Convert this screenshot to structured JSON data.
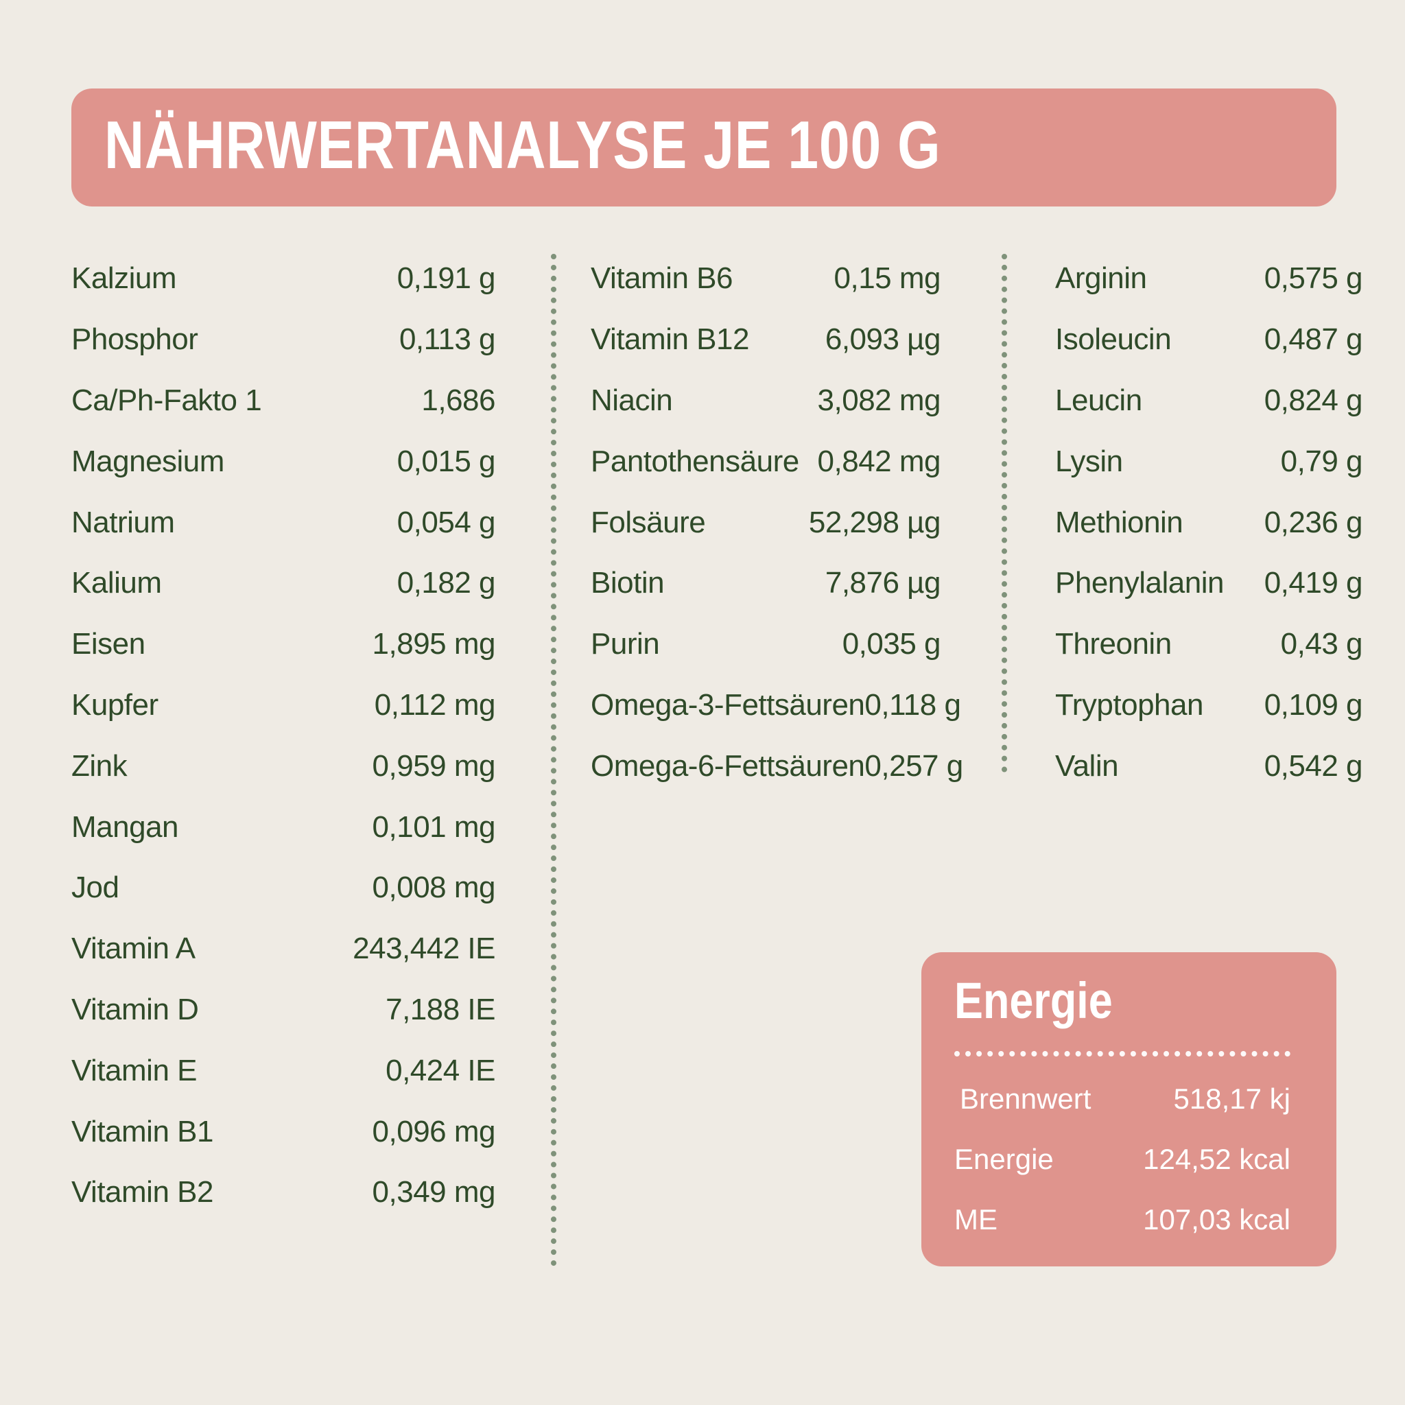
{
  "header": {
    "title": "NÄHRWERTANALYSE JE 100 G"
  },
  "columns": [
    [
      {
        "label": "Kalzium",
        "value": "0,191 g"
      },
      {
        "label": "Phosphor",
        "value": "0,113 g"
      },
      {
        "label": "Ca/Ph-Fakto 1",
        "value": "1,686"
      },
      {
        "label": "Magnesium",
        "value": "0,015 g"
      },
      {
        "label": "Natrium",
        "value": "0,054 g"
      },
      {
        "label": "Kalium",
        "value": "0,182 g"
      },
      {
        "label": "Eisen",
        "value": "1,895 mg"
      },
      {
        "label": "Kupfer",
        "value": "0,112 mg"
      },
      {
        "label": "Zink",
        "value": "0,959 mg"
      },
      {
        "label": "Mangan",
        "value": "0,101 mg"
      },
      {
        "label": "Jod",
        "value": "0,008 mg"
      },
      {
        "label": "Vitamin A",
        "value": "243,442 IE"
      },
      {
        "label": "Vitamin D",
        "value": "7,188 IE"
      },
      {
        "label": "Vitamin E",
        "value": "0,424 IE"
      },
      {
        "label": "Vitamin B1",
        "value": "0,096 mg"
      },
      {
        "label": "Vitamin B2",
        "value": "0,349 mg"
      }
    ],
    [
      {
        "label": "Vitamin B6",
        "value": "0,15 mg"
      },
      {
        "label": "Vitamin B12",
        "value": "6,093 µg"
      },
      {
        "label": "Niacin",
        "value": "3,082 mg"
      },
      {
        "label": "Pantothensäure",
        "value": "0,842 mg"
      },
      {
        "label": "Folsäure",
        "value": "52,298 µg"
      },
      {
        "label": "Biotin",
        "value": "7,876 µg"
      },
      {
        "label": "Purin",
        "value": "0,035 g"
      },
      {
        "label": "Omega-3-Fettsäuren",
        "value": "0,118 g"
      },
      {
        "label": "Omega-6-Fettsäuren",
        "value": "0,257 g"
      }
    ],
    [
      {
        "label": "Arginin",
        "value": "0,575 g"
      },
      {
        "label": "Isoleucin",
        "value": "0,487 g"
      },
      {
        "label": "Leucin",
        "value": "0,824 g"
      },
      {
        "label": "Lysin",
        "value": "0,79 g"
      },
      {
        "label": "Methionin",
        "value": "0,236 g"
      },
      {
        "label": "Phenylalanin",
        "value": "0,419 g"
      },
      {
        "label": "Threonin",
        "value": "0,43 g"
      },
      {
        "label": "Tryptophan",
        "value": "0,109 g"
      },
      {
        "label": "Valin",
        "value": "0,542 g"
      }
    ]
  ],
  "energy": {
    "title": "Energie",
    "rows": [
      {
        "label": "Brennwert",
        "value": "518,17 kj"
      },
      {
        "label": "Energie",
        "value": "124,52 kcal"
      },
      {
        "label": "ME",
        "value": "107,03 kcal"
      }
    ]
  },
  "colors": {
    "background": "#efebe4",
    "accent": "#df948d",
    "text": "#2f4a29",
    "divider": "#7f927a"
  }
}
